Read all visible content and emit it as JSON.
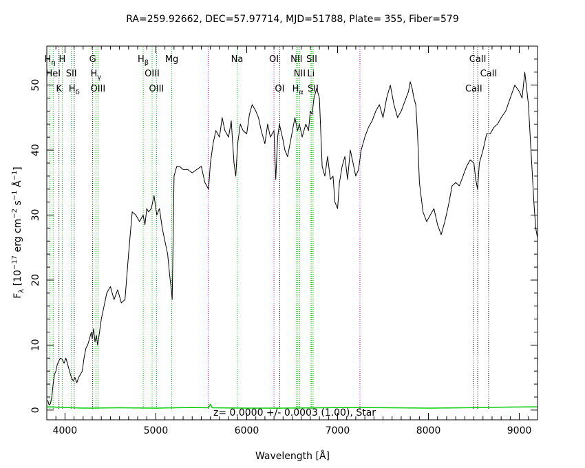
{
  "chart_data": {
    "type": "line",
    "title": "RA=259.92662, DEC=57.97714, MJD=51788, Plate= 355, Fiber=579",
    "xlabel": "Wavelength [Å]",
    "ylabel": "F_λ [10^-17 erg cm^-2 s^-1 Å^-1]",
    "xlim": [
      3800,
      9200
    ],
    "ylim": [
      -1.5,
      56
    ],
    "xticks": [
      4000,
      5000,
      6000,
      7000,
      8000,
      9000
    ],
    "yticks": [
      0,
      10,
      20,
      30,
      40,
      50
    ],
    "annotation": "z= 0.0000 +/- 0.0003 (1.00), Star",
    "colors": {
      "spectrum": "#000000",
      "model": "#00cc00",
      "emission_line": "#00bb00",
      "absorption_line": "#000000",
      "sky_line": "#cc00cc"
    },
    "series": [
      {
        "role": "spectrum",
        "x": [
          3810,
          3825,
          3840,
          3855,
          3870,
          3885,
          3900,
          3915,
          3930,
          3950,
          3970,
          3990,
          4010,
          4030,
          4050,
          4070,
          4090,
          4110,
          4130,
          4150,
          4170,
          4190,
          4210,
          4230,
          4250,
          4270,
          4290,
          4300,
          4315,
          4330,
          4345,
          4360,
          4380,
          4400,
          4430,
          4460,
          4500,
          4540,
          4580,
          4620,
          4660,
          4700,
          4740,
          4780,
          4820,
          4860,
          4880,
          4900,
          4920,
          4950,
          4980,
          5010,
          5040,
          5070,
          5100,
          5130,
          5150,
          5170,
          5180,
          5200,
          5230,
          5260,
          5300,
          5350,
          5400,
          5450,
          5500,
          5540,
          5580,
          5600,
          5630,
          5660,
          5700,
          5730,
          5760,
          5800,
          5830,
          5860,
          5880,
          5900,
          5930,
          5960,
          6000,
          6030,
          6060,
          6100,
          6130,
          6160,
          6200,
          6230,
          6260,
          6300,
          6320,
          6340,
          6360,
          6400,
          6420,
          6450,
          6490,
          6530,
          6560,
          6580,
          6610,
          6650,
          6680,
          6700,
          6720,
          6740,
          6770,
          6800,
          6830,
          6860,
          6890,
          6920,
          6950,
          6970,
          7000,
          7020,
          7050,
          7080,
          7110,
          7140,
          7170,
          7200,
          7230,
          7260,
          7300,
          7340,
          7380,
          7420,
          7460,
          7500,
          7540,
          7580,
          7620,
          7660,
          7700,
          7740,
          7780,
          7800,
          7820,
          7840,
          7860,
          7880,
          7900,
          7940,
          7980,
          8020,
          8060,
          8100,
          8140,
          8180,
          8220,
          8260,
          8300,
          8340,
          8380,
          8420,
          8460,
          8500,
          8520,
          8540,
          8560,
          8600,
          8640,
          8680,
          8720,
          8760,
          8800,
          8850,
          8900,
          8950,
          9000,
          9030,
          9060,
          9080,
          9100,
          9120,
          9140,
          9160,
          9180,
          9200
        ],
        "y": [
          1.5,
          0.8,
          1.0,
          2.0,
          4.0,
          5.5,
          6.0,
          7.0,
          7.5,
          8.0,
          7.8,
          7.2,
          8.0,
          7.0,
          6.0,
          5.0,
          4.5,
          5.0,
          4.2,
          5.0,
          5.5,
          6.0,
          8.0,
          9.5,
          10.0,
          11.0,
          12.0,
          11.0,
          12.5,
          10.5,
          11.5,
          10.0,
          12.0,
          14.0,
          16.0,
          18.0,
          19.0,
          17.0,
          18.5,
          16.5,
          17.0,
          24.0,
          30.5,
          30.0,
          29.0,
          30.0,
          28.5,
          31.0,
          30.5,
          31.0,
          33.0,
          30.0,
          31.0,
          28.0,
          26.0,
          24.0,
          21.0,
          18.5,
          17.0,
          36.0,
          37.5,
          37.5,
          37.0,
          37.0,
          36.5,
          37.0,
          37.5,
          35.0,
          34.0,
          38.0,
          41.0,
          43.0,
          42.0,
          45.0,
          43.0,
          42.0,
          44.5,
          38.0,
          36.0,
          41.0,
          44.0,
          43.0,
          42.5,
          45.5,
          47.0,
          46.0,
          45.0,
          43.0,
          41.0,
          44.0,
          42.0,
          43.0,
          35.5,
          42.0,
          44.0,
          41.5,
          40.0,
          39.0,
          42.0,
          45.0,
          43.0,
          44.0,
          42.0,
          44.0,
          43.0,
          46.0,
          45.5,
          48.0,
          49.5,
          48.0,
          37.5,
          36.0,
          39.0,
          35.5,
          36.0,
          32.0,
          31.0,
          35.0,
          37.5,
          39.0,
          35.5,
          40.0,
          38.0,
          36.0,
          37.0,
          40.0,
          42.0,
          43.5,
          44.5,
          46.0,
          47.0,
          45.0,
          48.0,
          50.0,
          47.0,
          45.0,
          46.0,
          47.5,
          49.0,
          50.5,
          49.5,
          48.0,
          47.0,
          42.5,
          35.0,
          30.5,
          29.0,
          30.0,
          31.0,
          28.5,
          27.0,
          29.0,
          31.5,
          34.5,
          35.0,
          34.5,
          36.0,
          37.5,
          38.5,
          38.0,
          35.5,
          34.0,
          38.0,
          40.0,
          42.5,
          42.5,
          43.5,
          44.0,
          45.0,
          46.0,
          48.0,
          50.0,
          49.0,
          48.0,
          52.0,
          49.5,
          47.0,
          42.0,
          37.0,
          32.0,
          28.0,
          26.5
        ]
      },
      {
        "role": "model",
        "x": [
          3800,
          4200,
          4600,
          5000,
          5400,
          5580,
          5600,
          5620,
          6000,
          6400,
          6800,
          7200,
          7600,
          8000,
          8400,
          8800,
          9200
        ],
        "y": [
          0.5,
          0.3,
          0.35,
          0.3,
          0.4,
          0.35,
          0.9,
          0.35,
          0.3,
          0.3,
          0.35,
          0.4,
          0.35,
          0.3,
          0.35,
          0.45,
          0.5
        ]
      }
    ],
    "line_markers": [
      {
        "wavelength": 3835,
        "kind": "emission",
        "label": "H_η",
        "row": 1
      },
      {
        "wavelength": 3870,
        "kind": "emission",
        "label": "HeI",
        "row": 2
      },
      {
        "wavelength": 3934,
        "kind": "absorption",
        "label": "K",
        "row": 3
      },
      {
        "wavelength": 3970,
        "kind": "emission",
        "label": "H",
        "row": 1
      },
      {
        "wavelength": 4070,
        "kind": "emission",
        "label": "SII",
        "row": 2
      },
      {
        "wavelength": 4102,
        "kind": "absorption",
        "label": "H_δ",
        "row": 3
      },
      {
        "wavelength": 4305,
        "kind": "absorption",
        "label": "G",
        "row": 1
      },
      {
        "wavelength": 4340,
        "kind": "emission",
        "label": "H_γ",
        "row": 2
      },
      {
        "wavelength": 4363,
        "kind": "emission",
        "label": "OIII",
        "row": 3
      },
      {
        "wavelength": 4861,
        "kind": "emission",
        "label": "H_β",
        "row": 1
      },
      {
        "wavelength": 4959,
        "kind": "emission",
        "label": "OIII",
        "row": 2
      },
      {
        "wavelength": 5007,
        "kind": "emission",
        "label": "OIII",
        "row": 3
      },
      {
        "wavelength": 5175,
        "kind": "emission",
        "label": "Mg",
        "row": 1
      },
      {
        "wavelength": 5577,
        "kind": "sky",
        "label": "",
        "row": 0
      },
      {
        "wavelength": 5894,
        "kind": "emission",
        "label": "Na",
        "row": 1
      },
      {
        "wavelength": 6300,
        "kind": "sky",
        "label": "OI",
        "row": 1
      },
      {
        "wavelength": 6363,
        "kind": "absorption",
        "label": "OI",
        "row": 3
      },
      {
        "wavelength": 6548,
        "kind": "emission",
        "label": "NII",
        "row": 1
      },
      {
        "wavelength": 6563,
        "kind": "emission",
        "label": "H_α",
        "row": 3
      },
      {
        "wavelength": 6583,
        "kind": "emission",
        "label": "NII",
        "row": 2
      },
      {
        "wavelength": 6707,
        "kind": "emission",
        "label": "Li",
        "row": 2
      },
      {
        "wavelength": 6716,
        "kind": "emission",
        "label": "SII",
        "row": 1
      },
      {
        "wavelength": 6731,
        "kind": "emission",
        "label": "SII",
        "row": 3
      },
      {
        "wavelength": 7246,
        "kind": "sky",
        "label": "",
        "row": 0
      },
      {
        "wavelength": 8498,
        "kind": "absorption",
        "label": "CaII",
        "row": 3
      },
      {
        "wavelength": 8542,
        "kind": "absorption",
        "label": "CaII",
        "row": 1
      },
      {
        "wavelength": 8662,
        "kind": "absorption",
        "label": "CaII",
        "row": 2
      }
    ]
  }
}
